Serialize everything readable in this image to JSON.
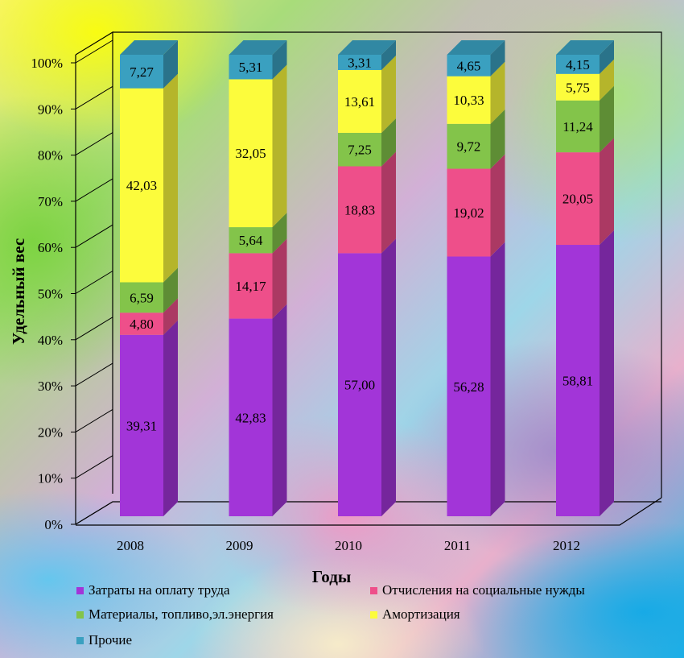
{
  "chart_data": {
    "type": "bar",
    "stacked": true,
    "categories": [
      "2008",
      "2009",
      "2010",
      "2011",
      "2012"
    ],
    "series": [
      {
        "name": "Затраты на оплату труда",
        "color": "#a235d8",
        "values": [
          39.31,
          42.83,
          57.0,
          56.28,
          58.81
        ],
        "labels": [
          "39,31",
          "42,83",
          "57,00",
          "56,28",
          "58,81"
        ]
      },
      {
        "name": "Отчисления на социальные нужды",
        "color": "#ee4f8a",
        "values": [
          4.8,
          14.17,
          18.83,
          19.02,
          20.05
        ],
        "labels": [
          "4,80",
          "14,17",
          "18,83",
          "19,02",
          "20,05"
        ]
      },
      {
        "name": "Материалы,  топливо,эл.энергия",
        "color": "#83c44a",
        "values": [
          6.59,
          5.64,
          7.25,
          9.72,
          11.24
        ],
        "labels": [
          "6,59",
          "5,64",
          "7,25",
          "9,72",
          "11,24"
        ]
      },
      {
        "name": "Амортизация",
        "color": "#fcfc3c",
        "values": [
          42.03,
          32.05,
          13.61,
          10.33,
          5.75
        ],
        "labels": [
          "42,03",
          "32,05",
          "13,61",
          "10,33",
          "5,75"
        ]
      },
      {
        "name": "Прочие",
        "color": "#3aa0c0",
        "values": [
          7.27,
          5.31,
          3.31,
          4.65,
          4.15
        ],
        "labels": [
          "7,27",
          "5,31",
          "3,31",
          "4,65",
          "4,15"
        ]
      }
    ],
    "yticks": [
      "0%",
      "10%",
      "20%",
      "30%",
      "40%",
      "50%",
      "60%",
      "70%",
      "80%",
      "90%",
      "100%"
    ],
    "ylim": [
      0,
      100
    ],
    "xlabel": "Годы",
    "ylabel": "Удельный вес",
    "grid": false,
    "legend": "bottom"
  }
}
